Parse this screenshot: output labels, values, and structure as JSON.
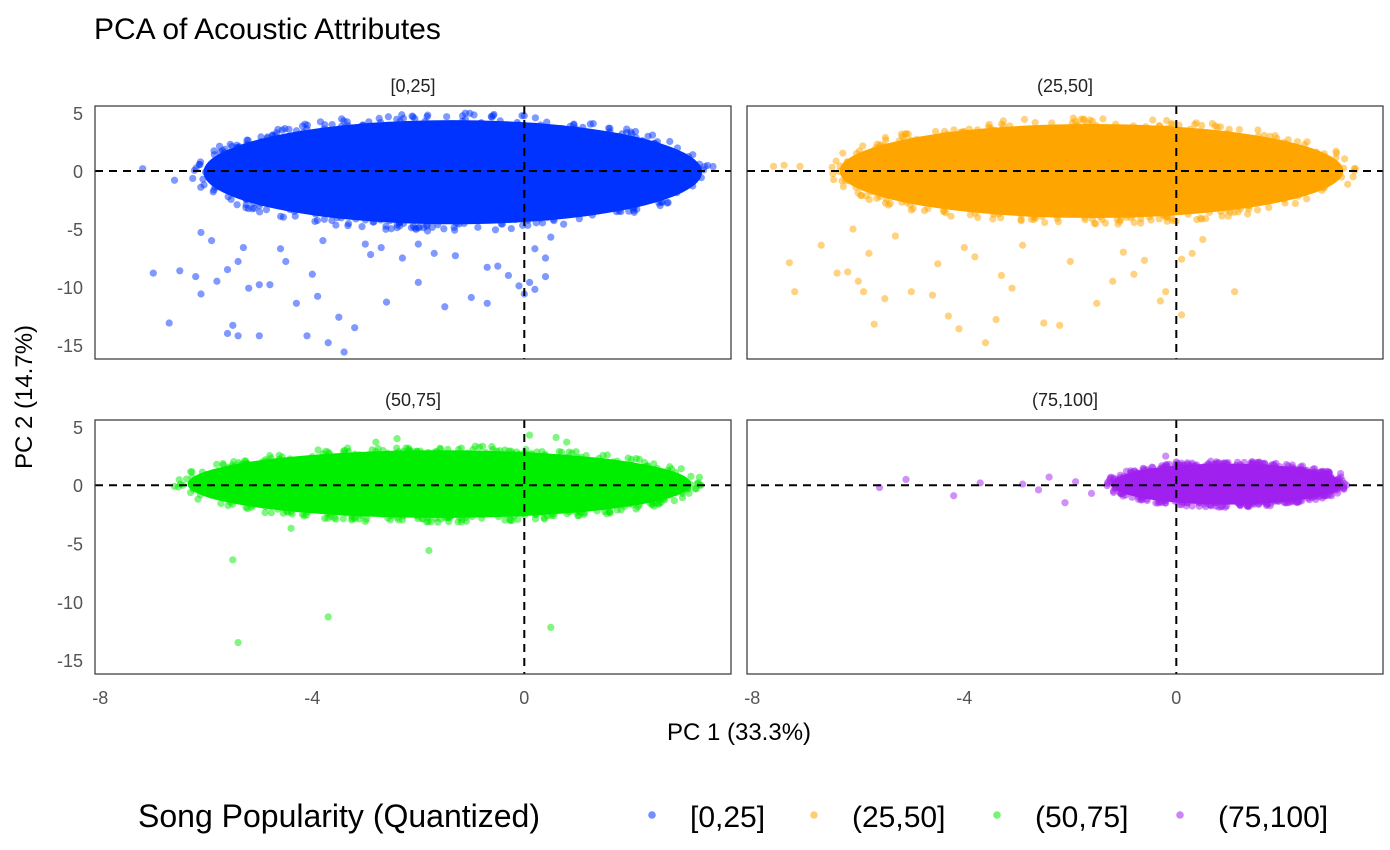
{
  "chart_data": {
    "type": "scatter",
    "title": "PCA of Acoustic Attributes",
    "xlabel": "PC 1 (33.3%)",
    "ylabel": "PC 2 (14.7%)",
    "xlim": [
      -8.1,
      3.9
    ],
    "ylim": [
      -16.2,
      5.6
    ],
    "x_ticks": [
      -8,
      -4,
      0
    ],
    "x_tick_labels": [
      "-8",
      "-4",
      "0"
    ],
    "y_ticks": [
      5,
      0,
      -5,
      -10,
      -15
    ],
    "y_tick_labels": [
      "5",
      "0",
      "-5",
      "-10",
      "-15"
    ],
    "reference_lines": {
      "x": 0,
      "y": 0,
      "style": "dashed"
    },
    "grid": false,
    "legend": {
      "title": "Song Popularity (Quantized)",
      "position": "bottom",
      "entries": [
        {
          "label": "[0,25]",
          "color": "#0033ff"
        },
        {
          "label": "(25,50]",
          "color": "#ffa500"
        },
        {
          "label": "(50,75]",
          "color": "#00ee00"
        },
        {
          "label": "(75,100]",
          "color": "#a020f0"
        }
      ]
    },
    "series": [
      {
        "name": "[0,25]",
        "color": "#0033ff",
        "cloud": {
          "x_range": [
            -6.2,
            3.5
          ],
          "y_range": [
            -5.2,
            5.0
          ],
          "center": [
            -1.5,
            0
          ]
        },
        "points": [
          {
            "x": -7.2,
            "y": 0.2
          },
          {
            "x": -6.6,
            "y": -0.8
          },
          {
            "x": -7.0,
            "y": -8.8
          },
          {
            "x": -6.7,
            "y": -13.1
          },
          {
            "x": -6.5,
            "y": -8.6
          },
          {
            "x": -6.2,
            "y": -9.1
          },
          {
            "x": -5.8,
            "y": -9.5
          },
          {
            "x": -6.1,
            "y": -10.6
          },
          {
            "x": -5.5,
            "y": -13.3
          },
          {
            "x": -5.6,
            "y": -14.0
          },
          {
            "x": -5.4,
            "y": -14.2
          },
          {
            "x": -5.0,
            "y": -14.2
          },
          {
            "x": -5.2,
            "y": -10.1
          },
          {
            "x": -5.4,
            "y": -7.8
          },
          {
            "x": -5.9,
            "y": -6.0
          },
          {
            "x": -6.1,
            "y": -5.3
          },
          {
            "x": -5.6,
            "y": -8.5
          },
          {
            "x": -4.8,
            "y": -9.8
          },
          {
            "x": -4.3,
            "y": -11.4
          },
          {
            "x": -3.9,
            "y": -10.8
          },
          {
            "x": -3.5,
            "y": -12.6
          },
          {
            "x": -3.2,
            "y": -13.5
          },
          {
            "x": -3.7,
            "y": -14.8
          },
          {
            "x": -2.6,
            "y": -11.3
          },
          {
            "x": -2.0,
            "y": -9.6
          },
          {
            "x": -1.5,
            "y": -11.7
          },
          {
            "x": -1.0,
            "y": -10.9
          },
          {
            "x": -0.7,
            "y": -11.4
          },
          {
            "x": -3.4,
            "y": -15.6
          },
          {
            "x": -4.1,
            "y": -14.2
          },
          {
            "x": -2.9,
            "y": -7.2
          },
          {
            "x": -4.5,
            "y": -7.8
          },
          {
            "x": -3.0,
            "y": -6.3
          },
          {
            "x": -2.3,
            "y": -7.5
          },
          {
            "x": -1.3,
            "y": -7.3
          },
          {
            "x": -0.3,
            "y": -9.0
          },
          {
            "x": -0.1,
            "y": -9.9
          },
          {
            "x": 0.1,
            "y": -9.6
          },
          {
            "x": 0.4,
            "y": -7.5
          },
          {
            "x": 0.2,
            "y": -6.7
          },
          {
            "x": 0.5,
            "y": -5.7
          },
          {
            "x": -0.5,
            "y": -8.2
          },
          {
            "x": 0.0,
            "y": -10.6
          },
          {
            "x": -2.0,
            "y": -6.3
          },
          {
            "x": -3.8,
            "y": -6.0
          },
          {
            "x": -4.0,
            "y": -8.9
          },
          {
            "x": -5.0,
            "y": -9.8
          },
          {
            "x": 0.4,
            "y": -9.1
          },
          {
            "x": 0.2,
            "y": -10.2
          },
          {
            "x": -1.7,
            "y": -7.1
          },
          {
            "x": -2.7,
            "y": -6.6
          },
          {
            "x": -0.7,
            "y": -8.3
          },
          {
            "x": -5.3,
            "y": -6.6
          },
          {
            "x": -4.6,
            "y": -6.7
          }
        ]
      },
      {
        "name": "(25,50]",
        "color": "#ffa500",
        "cloud": {
          "x_range": [
            -6.5,
            3.3
          ],
          "y_range": [
            -4.6,
            4.6
          ],
          "center": [
            -1.0,
            0
          ]
        },
        "points": [
          {
            "x": -7.6,
            "y": 0.4
          },
          {
            "x": -7.4,
            "y": 0.5
          },
          {
            "x": -7.1,
            "y": 0.4
          },
          {
            "x": -7.3,
            "y": -7.9
          },
          {
            "x": -7.2,
            "y": -10.4
          },
          {
            "x": -6.4,
            "y": -8.8
          },
          {
            "x": -6.7,
            "y": -6.4
          },
          {
            "x": -6.2,
            "y": -8.7
          },
          {
            "x": -6.0,
            "y": -9.5
          },
          {
            "x": -5.9,
            "y": -10.4
          },
          {
            "x": -5.7,
            "y": -13.2
          },
          {
            "x": -5.5,
            "y": -11.0
          },
          {
            "x": -5.0,
            "y": -10.4
          },
          {
            "x": -4.6,
            "y": -10.7
          },
          {
            "x": -4.3,
            "y": -12.5
          },
          {
            "x": -4.1,
            "y": -13.6
          },
          {
            "x": -3.6,
            "y": -14.8
          },
          {
            "x": -3.4,
            "y": -12.8
          },
          {
            "x": -3.1,
            "y": -10.1
          },
          {
            "x": -2.5,
            "y": -13.1
          },
          {
            "x": -2.2,
            "y": -13.3
          },
          {
            "x": -1.5,
            "y": -11.4
          },
          {
            "x": -1.2,
            "y": -9.5
          },
          {
            "x": -0.6,
            "y": -7.7
          },
          {
            "x": -0.2,
            "y": -10.4
          },
          {
            "x": -0.3,
            "y": -11.2
          },
          {
            "x": 0.1,
            "y": -7.6
          },
          {
            "x": 0.3,
            "y": -7.1
          },
          {
            "x": 0.5,
            "y": -5.9
          },
          {
            "x": 0.1,
            "y": -12.4
          },
          {
            "x": 1.1,
            "y": -10.4
          },
          {
            "x": -4.5,
            "y": -8.0
          },
          {
            "x": -3.8,
            "y": -7.4
          },
          {
            "x": -2.9,
            "y": -6.4
          },
          {
            "x": -2.0,
            "y": -7.8
          },
          {
            "x": -1.0,
            "y": -7.0
          },
          {
            "x": -5.3,
            "y": -5.6
          },
          {
            "x": -6.1,
            "y": -5.0
          },
          {
            "x": -4.0,
            "y": -6.6
          },
          {
            "x": -3.3,
            "y": -9.0
          },
          {
            "x": -0.8,
            "y": -8.9
          },
          {
            "x": -5.8,
            "y": -7.1
          }
        ]
      },
      {
        "name": "(50,75]",
        "color": "#00ee00",
        "cloud": {
          "x_range": [
            -6.5,
            3.3
          ],
          "y_range": [
            -3.2,
            3.4
          ],
          "center": [
            -1.5,
            0
          ]
        },
        "points": [
          {
            "x": -6.6,
            "y": -0.1
          },
          {
            "x": -5.5,
            "y": -6.4
          },
          {
            "x": -5.4,
            "y": -13.5
          },
          {
            "x": -3.7,
            "y": -11.3
          },
          {
            "x": 0.5,
            "y": -12.2
          },
          {
            "x": -1.8,
            "y": -5.6
          },
          {
            "x": -4.4,
            "y": -3.7
          },
          {
            "x": -2.8,
            "y": 3.7
          },
          {
            "x": -2.4,
            "y": 4.0
          },
          {
            "x": 0.1,
            "y": 4.3
          },
          {
            "x": 0.6,
            "y": 4.1
          },
          {
            "x": 0.8,
            "y": 3.7
          },
          {
            "x": -6.0,
            "y": 0.9
          },
          {
            "x": -3.0,
            "y": -3.1
          }
        ]
      },
      {
        "name": "(75,100]",
        "color": "#a020f0",
        "cloud": {
          "x_range": [
            -1.3,
            3.2
          ],
          "y_range": [
            -1.9,
            2.1
          ],
          "center": [
            0.6,
            0
          ]
        },
        "points": [
          {
            "x": -5.6,
            "y": -0.2
          },
          {
            "x": -5.1,
            "y": 0.5
          },
          {
            "x": -4.2,
            "y": -0.9
          },
          {
            "x": -3.7,
            "y": 0.2
          },
          {
            "x": -2.9,
            "y": 0.1
          },
          {
            "x": -2.6,
            "y": -0.4
          },
          {
            "x": -2.4,
            "y": 0.7
          },
          {
            "x": -2.1,
            "y": -1.5
          },
          {
            "x": -1.9,
            "y": 0.3
          },
          {
            "x": -1.6,
            "y": -0.7
          },
          {
            "x": -0.2,
            "y": 2.5
          },
          {
            "x": 0.0,
            "y": 2.0
          },
          {
            "x": 0.3,
            "y": 1.9
          },
          {
            "x": 3.1,
            "y": 1.0
          },
          {
            "x": 2.7,
            "y": 0.6
          }
        ]
      }
    ],
    "panels": [
      {
        "title": "[0,25]",
        "series": 0
      },
      {
        "title": "(25,50]",
        "series": 1
      },
      {
        "title": "(50,75]",
        "series": 2
      },
      {
        "title": "(75,100]",
        "series": 3
      }
    ]
  }
}
